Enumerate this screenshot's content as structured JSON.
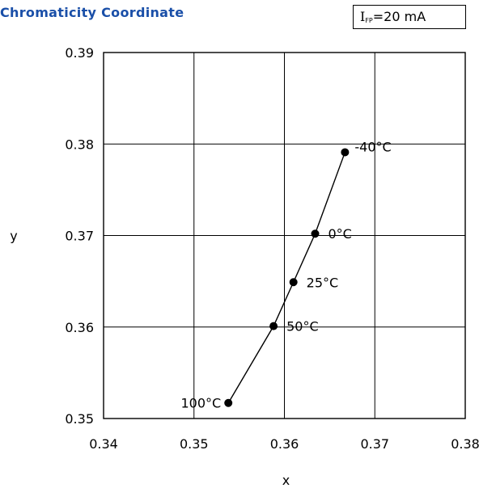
{
  "chart_data": {
    "type": "line",
    "title": "Chromaticity Coordinate",
    "condition": {
      "symbol": "I",
      "subscript": "FP",
      "value": "=20 mA"
    },
    "xlabel": "x",
    "ylabel": "y",
    "xlim": [
      0.34,
      0.38
    ],
    "ylim": [
      0.35,
      0.39
    ],
    "xticks": [
      "0.34",
      "0.35",
      "0.36",
      "0.37",
      "0.38"
    ],
    "yticks": [
      "0.39",
      "0.38",
      "0.37",
      "0.36",
      "0.35"
    ],
    "grid": true,
    "series": [
      {
        "points": [
          {
            "x": 0.3538,
            "y": 0.3517,
            "label": "100°C"
          },
          {
            "x": 0.3588,
            "y": 0.3601,
            "label": "50°C"
          },
          {
            "x": 0.361,
            "y": 0.3649,
            "label": "25°C"
          },
          {
            "x": 0.3634,
            "y": 0.3702,
            "label": "0°C"
          },
          {
            "x": 0.3667,
            "y": 0.3791,
            "label": "-40°C"
          }
        ]
      }
    ]
  }
}
